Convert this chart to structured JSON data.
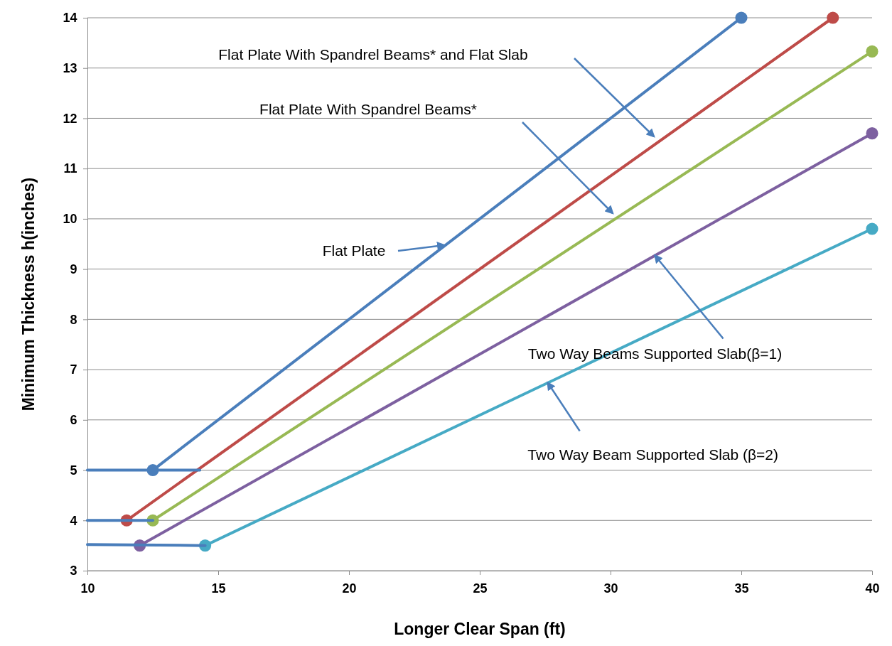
{
  "chart_data": {
    "type": "line",
    "xlabel": "Longer Clear Span (ft)",
    "ylabel": "Minimum Thickness h(inches)",
    "xlim": [
      10,
      40
    ],
    "xticks": [
      10,
      15,
      20,
      25,
      30,
      35,
      40
    ],
    "ylim": [
      3,
      14
    ],
    "yticks": [
      3,
      4,
      5,
      6,
      7,
      8,
      9,
      10,
      11,
      12,
      13,
      14
    ],
    "grid": "y",
    "series": [
      {
        "color": "#4a7ebb",
        "x": [
          10,
          14.3
        ],
        "values": [
          5,
          5
        ],
        "marker": "none"
      },
      {
        "color": "#4a7ebb",
        "x": [
          10,
          12.5
        ],
        "values": [
          4,
          4
        ],
        "marker": "none"
      },
      {
        "color": "#4a7ebb",
        "x": [
          10,
          14.5
        ],
        "values": [
          3.52,
          3.5
        ],
        "marker": "none"
      },
      {
        "color": "#4a7ebb",
        "x": [
          12.5,
          35
        ],
        "values": [
          5,
          14
        ],
        "marker": "circle"
      },
      {
        "color": "#be4b48",
        "x": [
          11.5,
          38.5
        ],
        "values": [
          4,
          14
        ],
        "marker": "circle"
      },
      {
        "color": "#98b954",
        "x": [
          12.5,
          40
        ],
        "values": [
          4,
          13.33
        ],
        "marker": "circle"
      },
      {
        "color": "#7d60a0",
        "x": [
          12,
          40
        ],
        "values": [
          3.5,
          11.7
        ],
        "marker": "circle"
      },
      {
        "color": "#46aac5",
        "x": [
          14.5,
          40
        ],
        "values": [
          3.5,
          9.8
        ],
        "marker": "circle"
      }
    ],
    "annotations": [
      "Flat Plate With Spandrel Beams* and Flat Slab",
      "Flat Plate With Spandrel Beams*",
      "Flat Plate",
      {
        "text": "Two Way Beams Supported Slab(β=1)",
        "x": 31.7,
        "y": 9.27
      },
      {
        "text": "Two Way Beam Supported Slab (β=2)",
        "x": 27.6,
        "y": 6.74
      }
    ]
  }
}
